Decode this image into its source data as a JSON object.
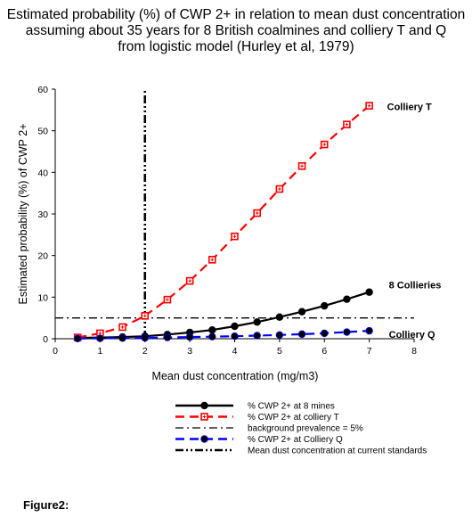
{
  "chart_data": {
    "type": "line",
    "title_lines": [
      "Estimated probability (%) of CWP 2+ in relation to mean dust concentration",
      "assuming about 35 years for 8 British coalmines  and colliery T and Q",
      "from logistic model (Hurley et al, 1979)"
    ],
    "xlabel": "Mean dust concentration (mg/m3)",
    "ylabel": "Estimated probability (%) of CWP 2+",
    "xlim": [
      0,
      8
    ],
    "ylim": [
      0,
      60
    ],
    "x_ticks": [
      0,
      1,
      2,
      3,
      4,
      5,
      6,
      7,
      8
    ],
    "y_ticks": [
      0,
      10,
      20,
      30,
      40,
      50,
      60
    ],
    "grid": false,
    "legend_position": "bottom",
    "series": [
      {
        "name": "% CWP 2+ at 8 mines",
        "label": "8 Collieries",
        "color": "#000000",
        "style": "solid",
        "marker": "filled-circle",
        "x": [
          0.5,
          1.0,
          1.5,
          2.0,
          2.5,
          3.0,
          3.5,
          4.0,
          4.5,
          5.0,
          5.5,
          6.0,
          6.5,
          7.0
        ],
        "values": [
          0.2,
          0.3,
          0.4,
          0.6,
          1.0,
          1.5,
          2.1,
          3.0,
          4.0,
          5.2,
          6.5,
          7.9,
          9.5,
          11.2
        ]
      },
      {
        "name": "% CWP 2+ at colliery T",
        "label": "Colliery T",
        "color": "#ff0000",
        "style": "dashed",
        "marker": "hollow-square",
        "x": [
          0.5,
          1.0,
          1.5,
          2.0,
          2.5,
          3.0,
          3.5,
          4.0,
          4.5,
          5.0,
          5.5,
          6.0,
          6.5,
          7.0
        ],
        "values": [
          0.3,
          1.3,
          2.8,
          5.5,
          9.4,
          13.9,
          19.0,
          24.6,
          30.2,
          36.0,
          41.5,
          46.7,
          51.5,
          56.0
        ]
      },
      {
        "name": "% CWP 2+ at Colliery Q",
        "label": "Colliery Q",
        "color": "#0000ff",
        "style": "dashed",
        "marker": "filled-circle",
        "x": [
          0.5,
          1.0,
          1.5,
          2.0,
          2.5,
          3.0,
          3.5,
          4.0,
          4.5,
          5.0,
          5.5,
          6.0,
          6.5,
          7.0
        ],
        "values": [
          0.05,
          0.1,
          0.15,
          0.2,
          0.3,
          0.4,
          0.5,
          0.6,
          0.75,
          0.9,
          1.1,
          1.3,
          1.6,
          1.9
        ]
      }
    ],
    "reference_lines": [
      {
        "name": "background prevalence = 5%",
        "orientation": "horizontal",
        "value": 5,
        "style": "dash-dot",
        "color": "#000000"
      },
      {
        "name": "Mean dust concentration at current standards",
        "orientation": "vertical",
        "value": 2,
        "style": "dash-dot-dot",
        "color": "#000000"
      }
    ]
  },
  "caption": "Figure2:"
}
